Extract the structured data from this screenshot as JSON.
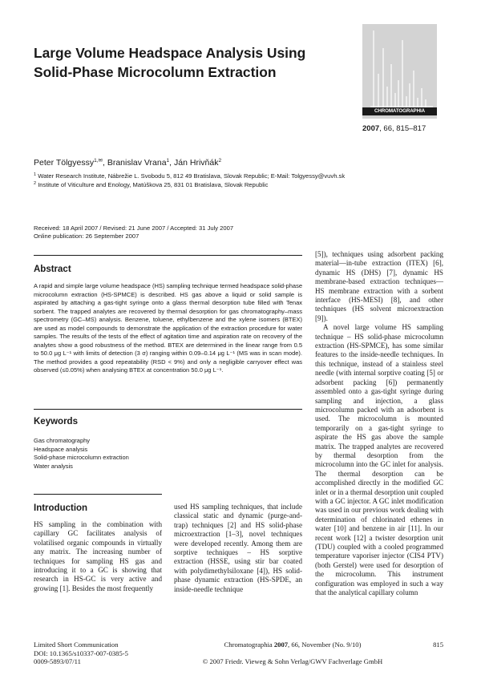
{
  "title": {
    "line1": "Large Volume Headspace Analysis Using",
    "line2": "Solid-Phase Microcolumn Extraction"
  },
  "journal_cover": {
    "name": "CHROMATOGRAPHIA",
    "colors": {
      "background": "#d3d3d3",
      "bars": "#ffffff",
      "band": "#1a1a1a"
    }
  },
  "citation": {
    "year": "2007",
    "rest": ", 66, 815–817"
  },
  "authors": {
    "a1": "Peter Tölgyessy",
    "a1_sup": "1,✉",
    "sep1": ", ",
    "a2": "Branislav Vrana",
    "a2_sup": "1",
    "sep2": ", ",
    "a3": "Ján Hrivňák",
    "a3_sup": "2"
  },
  "affiliations": [
    {
      "num": "1",
      "text": "Water Research Institute, Nábrežie L. Svobodu 5, 812 49 Bratislava, Slovak Republic; E-Mail: Tolgyessy@vuvh.sk"
    },
    {
      "num": "2",
      "text": "Institute of Viticulture and Enology, Matúškova 25, 831 01 Bratislava, Slovak Republic"
    }
  ],
  "dates": {
    "received": "Received: 18 April 2007 / Revised: 21 June 2007 / Accepted: 31 July 2007",
    "online": "Online publication: 26 September 2007"
  },
  "abstract": {
    "heading": "Abstract",
    "text": "A rapid and simple large volume headspace (HS) sampling technique termed headspace solid-phase microcolumn extraction (HS-SPMCE) is described. HS gas above a liquid or solid sample is aspirated by attaching a gas-tight syringe onto a glass thermal desorption tube filled with Tenax sorbent. The trapped analytes are recovered by thermal desorption for gas chromatography–mass spectrometry (GC–MS) analysis. Benzene, toluene, ethylbenzene and the xylene isomers (BTEX) are used as model compounds to demonstrate the application of the extraction procedure for water samples. The results of the tests of the effect of agitation time and aspiration rate on recovery of the analytes show a good robustness of the method. BTEX are determined in the linear range from 0.5 to 50.0 μg L⁻¹ with limits of detection (3 σ) ranging within 0.09–0.14 μg L⁻¹ (MS was in scan mode). The method provides a good repeatability (RSD < 9%) and only a negligible carryover effect was observed (≤0.05%) when analysing BTEX at concentration 50.0 μg L⁻¹."
  },
  "keywords": {
    "heading": "Keywords",
    "items": [
      "Gas chromatography",
      "Headspace analysis",
      "Solid-phase microcolumn extraction",
      "Water analysis"
    ]
  },
  "introduction": {
    "heading": "Introduction",
    "col1": "HS sampling in the combination with capillary GC facilitates analysis of volatilised organic compounds in virtually any matrix. The increasing number of techniques for sampling HS gas and introducing it to a GC is showing that research in HS-GC is very active and growing [1]. Besides the most frequently",
    "col2": "used HS sampling techniques, that include classical static and dynamic (purge-and-trap) techniques [2] and HS solid-phase microextraction [1–3], novel techniques were developed recently. Among them are sorptive techniques – HS sorptive extraction (HSSE, using stir bar coated with polydimethylsiloxane [4]), HS solid-phase dynamic extraction (HS-SPDE, an inside-needle technique",
    "col3_p1": "[5]), techniques using adsorbent packing material—in-tube extraction (ITEX) [6], dynamic HS (DHS) [7], dynamic HS membrane-based extraction techniques—HS membrane extraction with a sorbent interface (HS-MESI) [8], and other techniques (HS solvent microextraction [9]).",
    "col3_p2": "A novel large volume HS sampling technique – HS solid-phase microcolumn extraction (HS-SPMCE), has some similar features to the inside-needle techniques. In this technique, instead of a stainless steel needle (with internal sorptive coating [5] or adsorbent packing [6]) permanently assembled onto a gas-tight syringe during sampling and injection, a glass microcolumn packed with an adsorbent is used. The microcolumn is mounted temporarily on a gas-tight syringe to aspirate the HS gas above the sample matrix. The trapped analytes are recovered by thermal desorption from the microcolumn into the GC inlet for analysis. The thermal desorption can be accomplished directly in the modified GC inlet or in a thermal desorption unit coupled with a GC injector. A GC inlet modification was used in our previous work dealing with determination of chlorinated ethenes in water [10] and benzene in air [11]. In our recent work [12] a twister desorption unit (TDU) coupled with a cooled programmed temperature vaporiser injector (CIS4 PTV) (both Gerstel) were used for desorption of the microcolumn. This instrument configuration was employed in such a way that the analytical capillary column"
  },
  "footer": {
    "type": "Limited Short Communication",
    "doi": "DOI: 10.1365/s10337-007-0385-5",
    "issn": "0009-5893/07/11",
    "journal_pre": "Chromatographia ",
    "journal_year": "2007",
    "journal_post": ", 66, November (No. 9/10)",
    "copyright": "© 2007 Friedr. Vieweg & Sohn Verlag/GWV Fachverlage GmbH",
    "page": "815"
  }
}
